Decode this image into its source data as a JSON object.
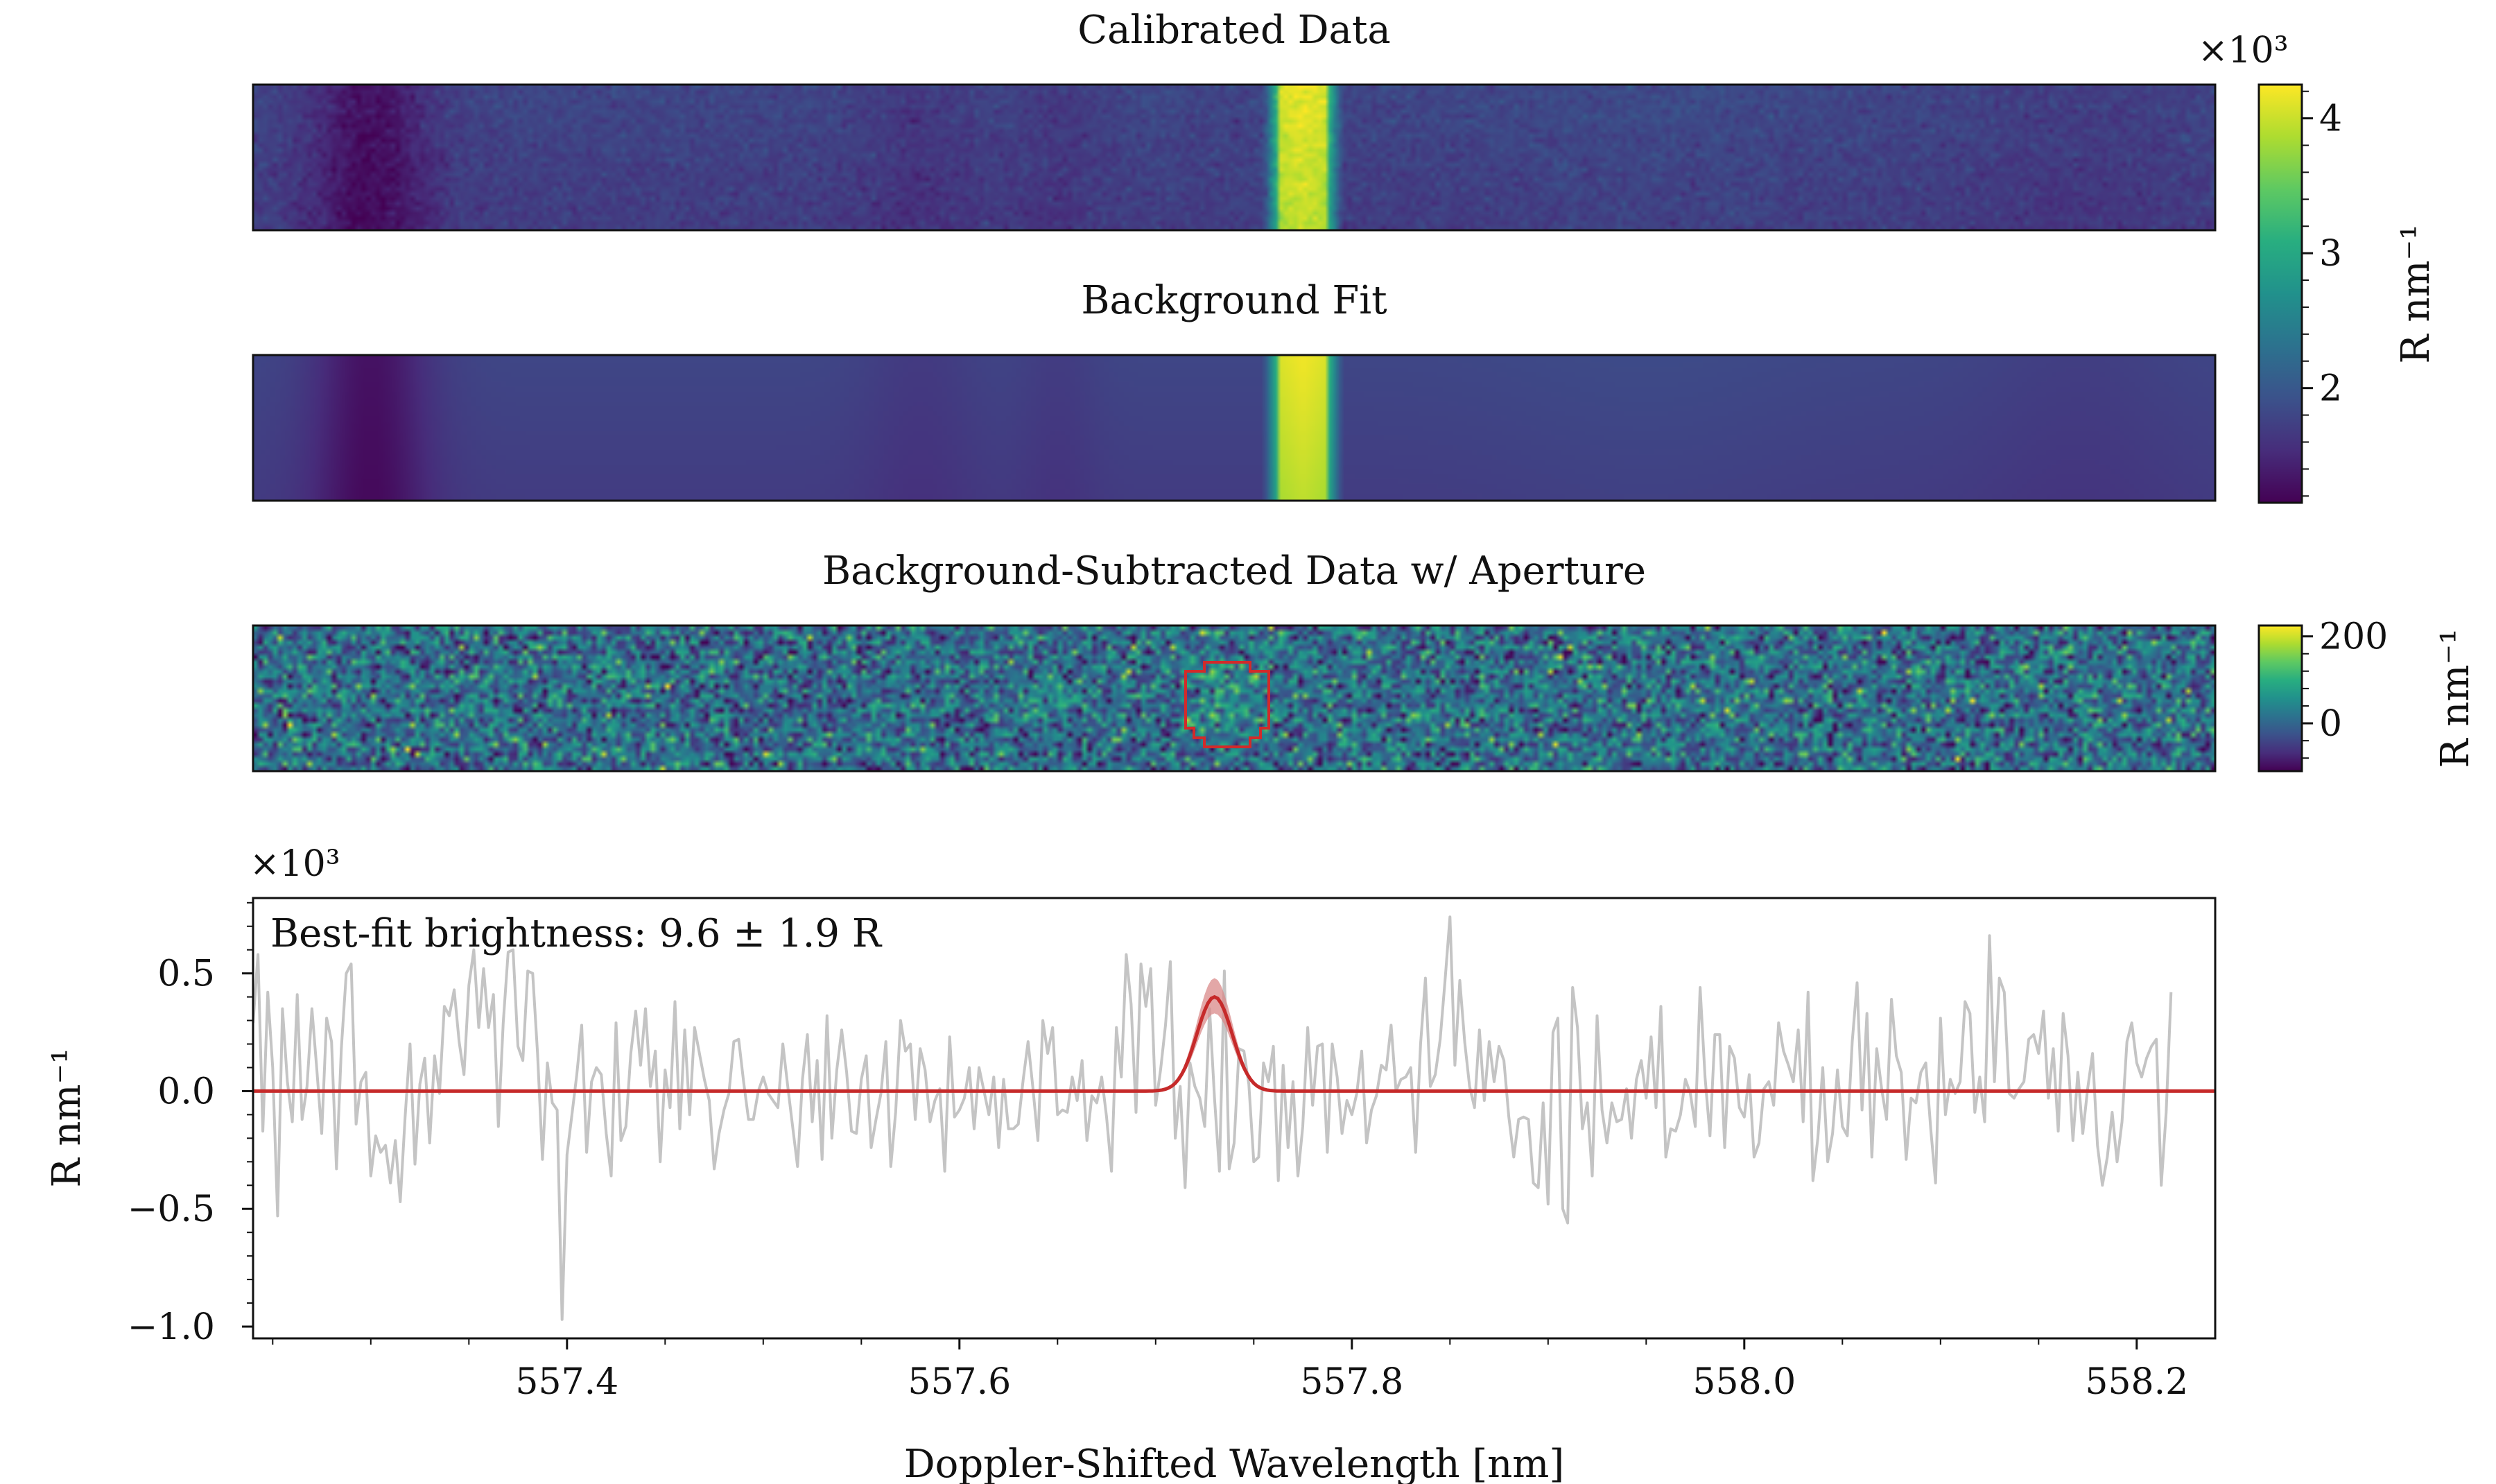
{
  "figure": {
    "panel1_title": "Calibrated Data",
    "panel2_title": "Background Fit",
    "panel3_title": "Background-Subtracted Data w/ Aperture",
    "xlabel": "Doppler-Shifted Wavelength [nm]",
    "colorbar_main": {
      "label": "R nm⁻¹",
      "multiplier": "×10³",
      "ticks": [
        "2",
        "3",
        "4"
      ],
      "tick_values": [
        2,
        3,
        4
      ],
      "range": [
        1.15,
        4.25
      ]
    },
    "colorbar_sub": {
      "label": "R nm⁻¹",
      "ticks": [
        "0",
        "200"
      ],
      "tick_values": [
        0,
        200
      ],
      "range": [
        -110,
        225
      ]
    },
    "spectrum": {
      "annotation": "Best-fit brightness: 9.6 ± 1.9 R",
      "multiplier": "×10³",
      "ylabel": "R nm⁻¹",
      "y_ticks": [
        "−1.0",
        "−0.5",
        "0.0",
        "0.5"
      ],
      "x_ticks": [
        "557.4",
        "557.6",
        "557.8",
        "558.0",
        "558.2"
      ]
    },
    "colors": {
      "data_line": "#c4c4c4",
      "fit_line": "#c62a2a",
      "fit_band": "#d98a8a",
      "aperture": "#d22a2a",
      "viridis_low": "#440154",
      "viridis_high": "#fde725"
    }
  },
  "chart_data": [
    {
      "type": "heatmap",
      "title": "Calibrated Data",
      "x_range": [
        557.24,
        558.24
      ],
      "units": "R nm⁻¹ (×10³)",
      "color_range": [
        1.15,
        4.25
      ],
      "emission_line_center": 557.775,
      "emission_line_peak": 4.2,
      "typical_background": 1.8,
      "dark_band_center": 557.3,
      "dark_band_value": 1.3
    },
    {
      "type": "heatmap",
      "title": "Background Fit",
      "x_range": [
        557.24,
        558.24
      ],
      "units": "R nm⁻¹ (×10³)",
      "color_range": [
        1.15,
        4.25
      ],
      "emission_line_center": 557.775,
      "emission_line_peak": 4.2,
      "typical_background": 1.8
    },
    {
      "type": "heatmap",
      "title": "Background-Subtracted Data w/ Aperture",
      "x_range": [
        557.24,
        558.24
      ],
      "units": "R nm⁻¹",
      "color_range": [
        -110,
        225
      ],
      "aperture_center": 557.735,
      "aperture_width": 0.045
    },
    {
      "type": "line",
      "xlabel": "Doppler-Shifted Wavelength [nm]",
      "ylabel": "R nm⁻¹ (×10³)",
      "xlim": [
        557.24,
        558.24
      ],
      "ylim": [
        -1.05,
        0.82
      ],
      "x_ticks": [
        557.4,
        557.6,
        557.8,
        558.0,
        558.2
      ],
      "y_ticks": [
        -1.0,
        -0.5,
        0.0,
        0.5
      ],
      "fit": {
        "amplitude": 0.4,
        "center": 557.73,
        "sigma": 0.009,
        "band_upper_amp": 0.48,
        "band_lower_amp": 0.33
      },
      "data_x_start": 557.24,
      "data_x_step": 0.0025,
      "data_y": [
        0.29,
        0.58,
        -0.17,
        0.42,
        0.1,
        -0.53,
        0.35,
        0.04,
        -0.13,
        0.41,
        -0.12,
        0.02,
        0.35,
        0.09,
        -0.18,
        0.31,
        0.21,
        -0.33,
        0.18,
        0.5,
        0.54,
        -0.14,
        0.04,
        0.08,
        -0.36,
        -0.19,
        -0.26,
        -0.23,
        -0.39,
        -0.21,
        -0.47,
        -0.11,
        0.2,
        -0.31,
        0.03,
        0.14,
        -0.22,
        0.15,
        -0.01,
        0.36,
        0.32,
        0.43,
        0.21,
        0.07,
        0.45,
        0.6,
        0.27,
        0.52,
        0.27,
        0.41,
        -0.15,
        0.29,
        0.59,
        0.6,
        0.19,
        0.13,
        0.51,
        0.5,
        0.16,
        -0.29,
        0.12,
        -0.05,
        -0.08,
        -0.97,
        -0.27,
        -0.1,
        0.07,
        0.28,
        -0.26,
        0.04,
        0.1,
        0.07,
        -0.18,
        -0.36,
        0.29,
        -0.21,
        -0.15,
        0.16,
        0.34,
        0.11,
        0.35,
        0.02,
        0.17,
        -0.3,
        0.09,
        -0.07,
        0.38,
        -0.16,
        0.26,
        -0.1,
        0.27,
        0.16,
        0.05,
        -0.04,
        -0.33,
        -0.18,
        -0.08,
        -0.01,
        0.21,
        0.22,
        0.04,
        -0.12,
        -0.12,
        0.0,
        0.06,
        -0.01,
        -0.04,
        -0.07,
        0.2,
        0.02,
        -0.15,
        -0.32,
        0.05,
        0.24,
        -0.13,
        0.13,
        -0.29,
        0.32,
        -0.2,
        0.09,
        0.26,
        0.08,
        -0.17,
        -0.18,
        0.05,
        0.15,
        -0.24,
        -0.12,
        -0.01,
        0.21,
        -0.32,
        -0.09,
        0.3,
        0.17,
        0.2,
        -0.12,
        0.18,
        0.09,
        -0.13,
        -0.04,
        0.01,
        -0.34,
        0.23,
        -0.11,
        -0.08,
        -0.03,
        0.1,
        -0.16,
        0.1,
        0.0,
        -0.1,
        0.06,
        -0.24,
        0.05,
        -0.16,
        -0.16,
        -0.14,
        0.05,
        0.21,
        0.01,
        -0.21,
        0.3,
        0.16,
        0.27,
        -0.1,
        -0.08,
        -0.09,
        0.06,
        -0.04,
        0.13,
        -0.21,
        -0.02,
        -0.05,
        0.06,
        -0.11,
        -0.34,
        0.27,
        0.06,
        0.58,
        0.37,
        -0.09,
        0.54,
        0.36,
        0.52,
        -0.06,
        0.09,
        0.28,
        0.55,
        -0.2,
        0.02,
        -0.41,
        0.12,
        0.02,
        -0.03,
        -0.15,
        0.35,
        -0.03,
        -0.34,
        0.51,
        -0.33,
        -0.22,
        0.18,
        0.17,
        0.03,
        -0.3,
        -0.28,
        0.12,
        0.04,
        0.19,
        -0.38,
        0.11,
        -0.24,
        0.04,
        -0.36,
        -0.15,
        0.27,
        -0.06,
        0.19,
        0.2,
        -0.26,
        0.2,
        0.06,
        -0.18,
        -0.04,
        -0.1,
        -0.01,
        0.17,
        -0.22,
        -0.08,
        -0.02,
        0.11,
        0.09,
        0.28,
        0.0,
        0.05,
        0.06,
        0.1,
        -0.26,
        0.2,
        0.48,
        0.02,
        0.07,
        0.22,
        0.47,
        0.74,
        0.11,
        0.47,
        0.21,
        0.02,
        -0.07,
        0.26,
        -0.04,
        0.21,
        0.04,
        0.19,
        0.13,
        -0.11,
        -0.28,
        -0.12,
        -0.11,
        -0.12,
        -0.39,
        -0.41,
        -0.05,
        -0.48,
        0.25,
        0.31,
        -0.5,
        -0.56,
        0.44,
        0.27,
        -0.16,
        -0.05,
        -0.36,
        0.32,
        -0.08,
        -0.22,
        -0.05,
        -0.13,
        -0.12,
        0.01,
        -0.2,
        0.05,
        0.13,
        -0.03,
        0.23,
        -0.07,
        0.36,
        -0.28,
        -0.16,
        -0.17,
        -0.1,
        0.05,
        -0.01,
        -0.15,
        0.44,
        0.06,
        -0.19,
        0.24,
        0.24,
        -0.24,
        0.19,
        0.14,
        -0.07,
        -0.11,
        0.07,
        -0.28,
        -0.22,
        0.01,
        0.04,
        -0.06,
        0.29,
        0.17,
        0.11,
        0.04,
        0.26,
        -0.13,
        0.42,
        -0.38,
        -0.2,
        0.1,
        -0.3,
        -0.18,
        0.09,
        -0.15,
        -0.19,
        0.21,
        0.46,
        -0.08,
        0.33,
        -0.28,
        0.18,
        0.01,
        -0.12,
        0.39,
        0.15,
        0.08,
        -0.29,
        -0.03,
        -0.05,
        0.08,
        0.12,
        -0.16,
        -0.39,
        0.31,
        -0.1,
        0.05,
        -0.01,
        0.04,
        0.38,
        0.33,
        -0.09,
        0.06,
        -0.13,
        0.66,
        0.04,
        0.48,
        0.42,
        -0.01,
        -0.03,
        0.01,
        0.04,
        0.22,
        0.24,
        0.16,
        0.34,
        -0.03,
        0.18,
        -0.17,
        0.33,
        0.15,
        -0.21,
        0.08,
        -0.18,
        0.01,
        0.16,
        -0.23,
        -0.4,
        -0.28,
        -0.09,
        -0.3,
        -0.13,
        0.21,
        0.29,
        0.12,
        0.06,
        0.14,
        0.19,
        0.22,
        -0.4,
        -0.09,
        0.42
      ]
    }
  ]
}
